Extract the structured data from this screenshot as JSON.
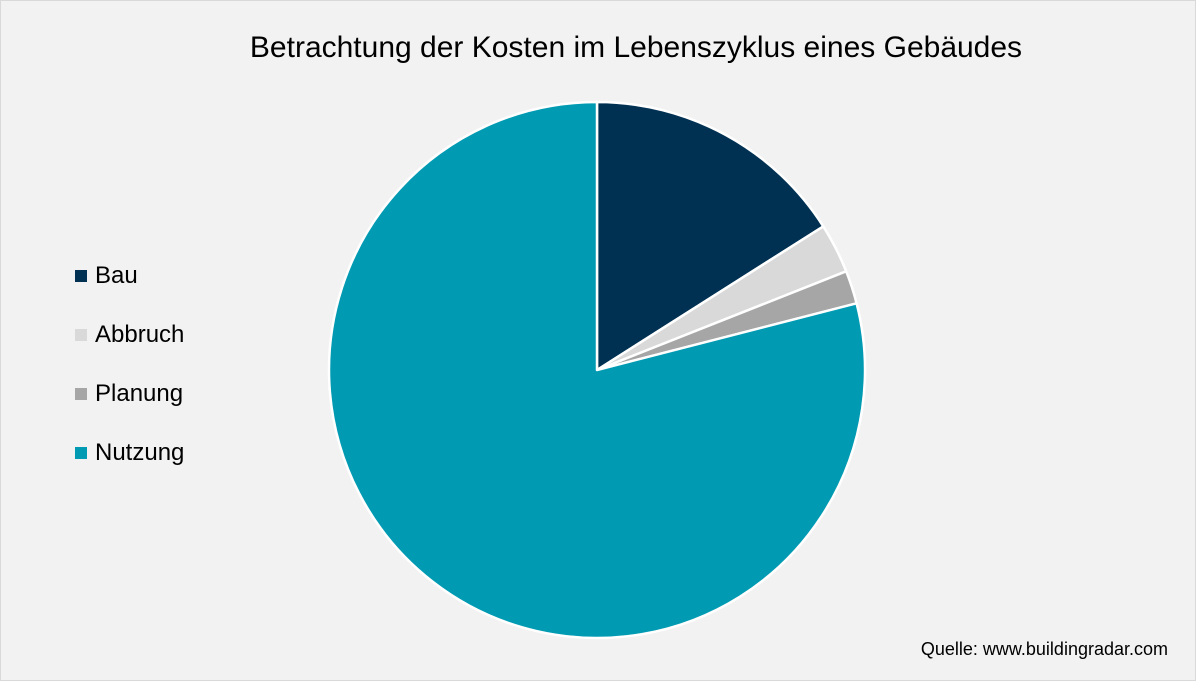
{
  "chart_data": {
    "type": "pie",
    "title": "Betrachtung der Kosten im Lebenszyklus eines Gebäudes",
    "start_angle_deg": 0,
    "direction": "clockwise",
    "legend_position": "left",
    "categories": [
      "Bau",
      "Abbruch",
      "Planung",
      "Nutzung"
    ],
    "values": [
      16,
      3,
      2,
      79
    ],
    "colors": [
      "#003153",
      "#d9d9d9",
      "#a6a6a6",
      "#009bb3"
    ],
    "slice_border_color": "#ffffff"
  },
  "source": "Quelle: www.buildingradar.com",
  "background_color": "#f2f2f2"
}
